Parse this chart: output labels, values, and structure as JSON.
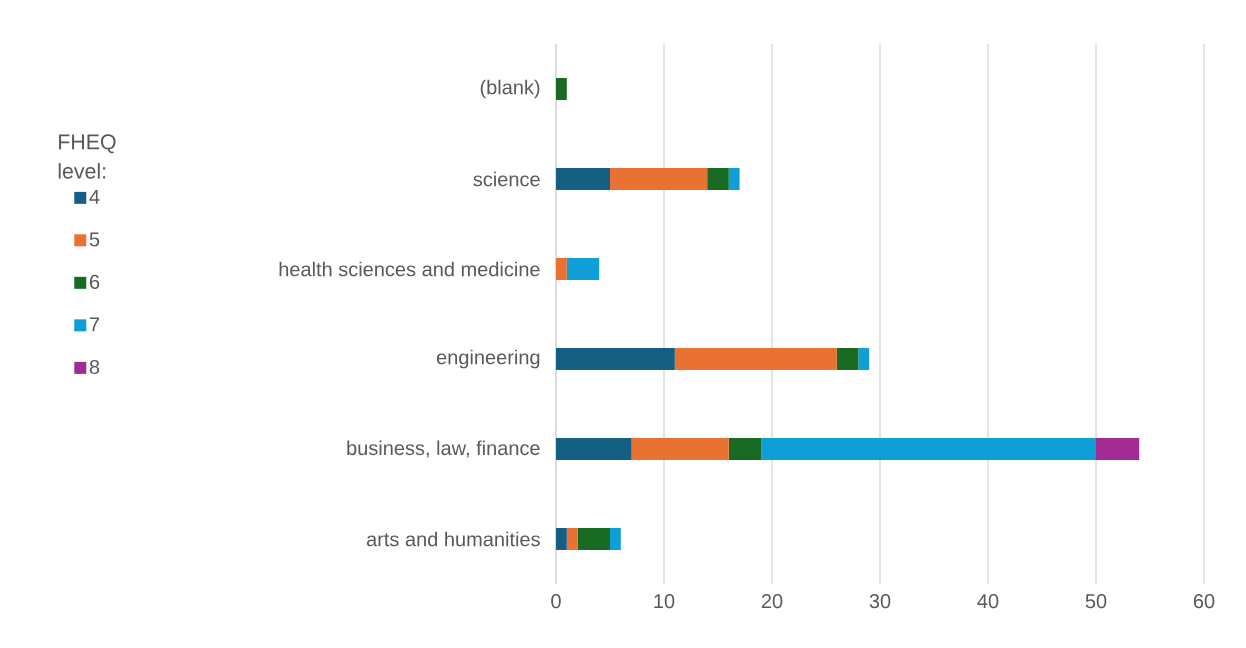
{
  "chart_data": {
    "type": "bar",
    "orientation": "horizontal",
    "stacked": true,
    "legend_title": "FHEQ level:",
    "legend": "left",
    "grid": "x",
    "categories": [
      "(blank)",
      "science",
      "health sciences and medicine",
      "engineering",
      "business, law, finance",
      "arts and humanities"
    ],
    "series": [
      {
        "name": "4",
        "color": "#156082",
        "values": [
          null,
          5,
          null,
          11,
          7,
          1
        ]
      },
      {
        "name": "5",
        "color": "#e97132",
        "values": [
          null,
          9,
          1,
          15,
          9,
          1
        ]
      },
      {
        "name": "6",
        "color": "#196b24",
        "values": [
          1,
          2,
          null,
          2,
          3,
          3
        ]
      },
      {
        "name": "7",
        "color": "#0f9ed5",
        "values": [
          null,
          1,
          3,
          1,
          31,
          1
        ]
      },
      {
        "name": "8",
        "color": "#a02b93",
        "values": [
          null,
          null,
          null,
          null,
          4,
          null
        ]
      }
    ],
    "xlim": [
      0,
      60
    ],
    "xticks": [
      0,
      10,
      20,
      30,
      40,
      50,
      60
    ]
  }
}
